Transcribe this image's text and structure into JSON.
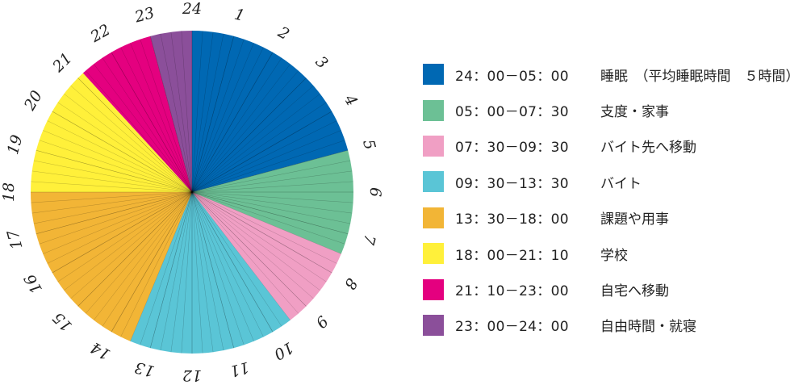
{
  "chart_data": {
    "type": "pie",
    "hour_ticks": [
      "24",
      "1",
      "2",
      "3",
      "4",
      "5",
      "6",
      "7",
      "8",
      "9",
      "10",
      "11",
      "12",
      "13",
      "14",
      "15",
      "16",
      "17",
      "18",
      "19",
      "20",
      "21",
      "22",
      "23"
    ],
    "slices": [
      {
        "time": "24：00－05：00",
        "label": "睡眠　（平均睡眠時間　５時間）",
        "start": 0,
        "end": 5,
        "color": "#0068b3"
      },
      {
        "time": "05：00－07：30",
        "label": "支度・家事",
        "start": 5,
        "end": 7.5,
        "color": "#6cc095"
      },
      {
        "time": "07：30－09：30",
        "label": "バイト先へ移動",
        "start": 7.5,
        "end": 9.5,
        "color": "#f09fc4"
      },
      {
        "time": "09：30－13：30",
        "label": "バイト",
        "start": 9.5,
        "end": 13.5,
        "color": "#5ac5d6"
      },
      {
        "time": "13：30－18：00",
        "label": "課題や用事",
        "start": 13.5,
        "end": 18,
        "color": "#f2b536"
      },
      {
        "time": "18：00－21：10",
        "label": "学校",
        "start": 18,
        "end": 21.1667,
        "color": "#fff03a"
      },
      {
        "time": "21：10－23：00",
        "label": "自宅へ移動",
        "start": 21.1667,
        "end": 23,
        "color": "#e4007f"
      },
      {
        "time": "23：00－24：00",
        "label": "自由時間・就寝",
        "start": 23,
        "end": 24,
        "color": "#8b4f9a"
      }
    ]
  }
}
